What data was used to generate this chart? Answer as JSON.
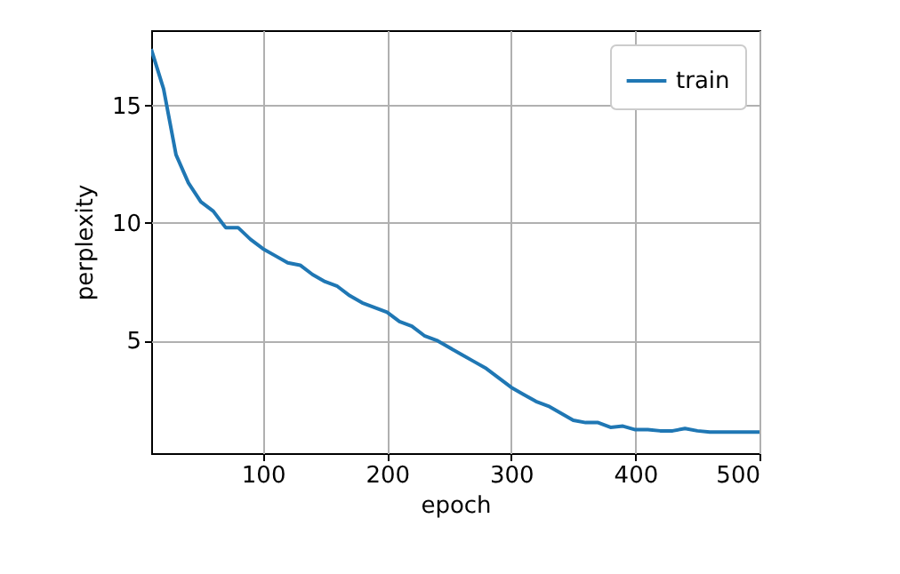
{
  "chart_data": {
    "type": "line",
    "xlabel": "epoch",
    "ylabel": "perplexity",
    "x": [
      10,
      20,
      30,
      40,
      50,
      60,
      70,
      80,
      90,
      100,
      110,
      120,
      130,
      140,
      150,
      160,
      170,
      180,
      190,
      200,
      210,
      220,
      230,
      240,
      250,
      260,
      270,
      280,
      290,
      300,
      310,
      320,
      330,
      340,
      350,
      360,
      370,
      380,
      390,
      400,
      410,
      420,
      430,
      440,
      450,
      460,
      470,
      480,
      490,
      500
    ],
    "series": [
      {
        "name": "train",
        "color": "#1f77b4",
        "values": [
          17.4,
          15.7,
          12.9,
          11.7,
          10.9,
          10.5,
          9.8,
          9.8,
          9.3,
          8.9,
          8.6,
          8.3,
          8.2,
          7.8,
          7.5,
          7.3,
          6.9,
          6.6,
          6.4,
          6.2,
          5.8,
          5.6,
          5.2,
          5.0,
          4.7,
          4.4,
          4.1,
          3.8,
          3.4,
          3.0,
          2.7,
          2.4,
          2.2,
          1.9,
          1.6,
          1.5,
          1.5,
          1.3,
          1.35,
          1.2,
          1.2,
          1.15,
          1.15,
          1.25,
          1.15,
          1.1,
          1.1,
          1.1,
          1.1,
          1.1
        ]
      }
    ],
    "xlim": [
      10,
      500
    ],
    "xticks": [
      100,
      200,
      300,
      400,
      500
    ],
    "ylim": [
      0.2,
      18.2
    ],
    "yticks": [
      5,
      10,
      15
    ],
    "grid": true,
    "legend": "top right"
  }
}
